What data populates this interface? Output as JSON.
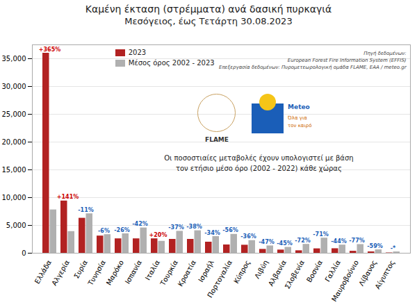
{
  "chart_data": {
    "type": "bar",
    "title": "Καμένη έκταση (στρέμματα) ανά δασική πυρκαγιά",
    "subtitle": "Μεσόγειος, έως Τετάρτη 30.08.2023",
    "categories": [
      "Ελλάδα",
      "Αλγερία",
      "Συρία",
      "Τυνησία",
      "Μαρόκο",
      "Ισπανία",
      "Ιταλία",
      "Τουρκία",
      "Κροατία",
      "Ισραήλ",
      "Πορτογαλία",
      "Κύπρος",
      "Λιβύη",
      "Αλβανία",
      "Σλοβενία",
      "Βοσνία",
      "Γαλλία",
      "Μαυροβούνιο",
      "Λίβανος",
      "Αίγυπτος"
    ],
    "series": [
      {
        "name": "2023",
        "color": "#b22222",
        "values": [
          36000,
          9400,
          6300,
          3100,
          2600,
          2600,
          2600,
          2500,
          2500,
          2000,
          1500,
          1450,
          700,
          580,
          450,
          800,
          820,
          360,
          250,
          60
        ]
      },
      {
        "name": "Μέσος όρος 2002 - 2023",
        "color": "#b0b0b0",
        "values": [
          7800,
          3900,
          7100,
          3350,
          3500,
          4550,
          2150,
          3950,
          4050,
          3000,
          3400,
          2280,
          1320,
          1060,
          1600,
          2720,
          1470,
          1570,
          610,
          240
        ]
      }
    ],
    "ylim": [
      0,
      37500
    ],
    "yticks": [
      0,
      {
        "value": 5000,
        "label": "5,000"
      },
      {
        "value": 10000,
        "label": "10,000"
      },
      {
        "value": 15000,
        "label": "15,000"
      },
      {
        "value": 20000,
        "label": "20,000"
      },
      {
        "value": 25000,
        "label": "25,000"
      },
      {
        "value": 30000,
        "label": "30,000"
      },
      {
        "value": 35000,
        "label": "35,000"
      }
    ],
    "grid": true,
    "legend": "upper left",
    "annotations": [
      {
        "category": "Ελλάδα",
        "text": "+365%",
        "color": "#cc0000"
      },
      {
        "category": "Αλγερία",
        "text": "+141%",
        "color": "#cc0000"
      },
      {
        "category": "Συρία",
        "text": "-11%",
        "color": "#1a5eb8"
      },
      {
        "category": "Τυνησία",
        "text": "-6%",
        "color": "#1a5eb8"
      },
      {
        "category": "Μαρόκο",
        "text": "-26%",
        "color": "#1a5eb8"
      },
      {
        "category": "Ισπανία",
        "text": "-42%",
        "color": "#1a5eb8"
      },
      {
        "category": "Ιταλία",
        "text": "+20%",
        "color": "#cc0000"
      },
      {
        "category": "Τουρκία",
        "text": "-37%",
        "color": "#1a5eb8"
      },
      {
        "category": "Κροατία",
        "text": "-38%",
        "color": "#1a5eb8"
      },
      {
        "category": "Ισραήλ",
        "text": "-34%",
        "color": "#1a5eb8"
      },
      {
        "category": "Πορτογαλία",
        "text": "-56%",
        "color": "#1a5eb8"
      },
      {
        "category": "Κύπρος",
        "text": "-36%",
        "color": "#1a5eb8"
      },
      {
        "category": "Λιβύη",
        "text": "-47%",
        "color": "#1a5eb8"
      },
      {
        "category": "Αλβανία",
        "text": "-45%",
        "color": "#1a5eb8"
      },
      {
        "category": "Σλοβενία",
        "text": "-72%",
        "color": "#1a5eb8"
      },
      {
        "category": "Βοσνία",
        "text": "-71%",
        "color": "#1a5eb8"
      },
      {
        "category": "Γαλλία",
        "text": "-44%",
        "color": "#1a5eb8"
      },
      {
        "category": "Μαυροβούνιο",
        "text": "-77%",
        "color": "#1a5eb8"
      },
      {
        "category": "Λίβανος",
        "text": "-59%",
        "color": "#1a5eb8"
      },
      {
        "category": "Αίγυπτος",
        "text": "-*",
        "color": "#1a5eb8"
      },
      {
        "text": "Πηγή δεδομένων:\nEuropean Forest Fire Information System (EFFIS)\nΕπεξεργασία δεδομένων: Πυρομετεωρολογική ομάδα FLAME, ΕΑΑ / meteo.gr"
      },
      {
        "text": "Οι ποσοστιαίες μεταβολές έχουν υπολογιστεί με βάση\nτον ετήσιο μέσο όρο (2002 - 2022) κάθε χώρας"
      },
      {
        "text": "FLAME"
      },
      {
        "text": "Meteo"
      },
      {
        "text": "Όλα για"
      },
      {
        "text": "τον καιρό"
      }
    ]
  }
}
